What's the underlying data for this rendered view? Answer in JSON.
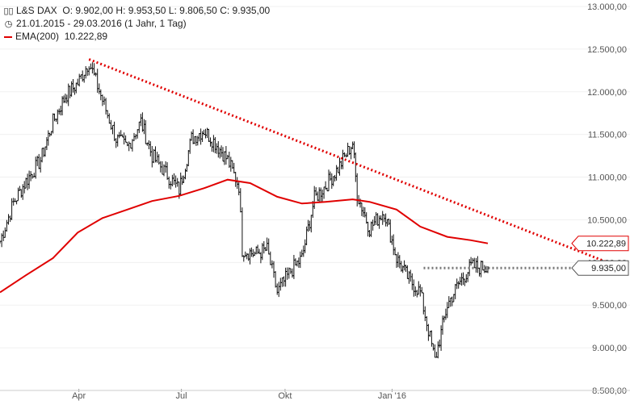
{
  "header": {
    "instrument_label": "L&S DAX",
    "ohlc": "O: 9.902,00  H: 9.953,50  L: 9.806,50  C: 9.935,00",
    "date_range": "21.01.2015 - 29.03.2016 (1 Jahr, 1 Tag)",
    "ema_label": "EMA(200)",
    "ema_value": "10.222,89",
    "icons": [
      "candlestick-icon",
      "clock-icon",
      "ema-line-icon"
    ]
  },
  "colors": {
    "price": "#111111",
    "ema": "#e00000",
    "trendline": "#e00000",
    "last_price_line": "#777777",
    "grid": "#f0f0f0",
    "axis_text": "#555555"
  },
  "chart_data": {
    "type": "line",
    "title": "L&S DAX",
    "x_tick_labels": [
      "Apr",
      "Jul",
      "Okt",
      "Jan '16"
    ],
    "y_tick_labels": [
      "8.500,00",
      "9.000,00",
      "9.500,00",
      "10.000,00",
      "10.500,00",
      "11.000,00",
      "11.500,00",
      "12.000,00",
      "12.500,00",
      "13.000,00"
    ],
    "ylim": [
      8500,
      13000
    ],
    "xlim": [
      "2015-01-21",
      "2016-03-29"
    ],
    "grid": true,
    "series": [
      {
        "name": "L&S DAX",
        "style": "ohlc-bars",
        "x": [
          "2015-01-21",
          "2015-02-02",
          "2015-02-13",
          "2015-02-26",
          "2015-03-09",
          "2015-03-20",
          "2015-03-31",
          "2015-04-10",
          "2015-04-22",
          "2015-05-04",
          "2015-05-14",
          "2015-05-26",
          "2015-06-05",
          "2015-06-17",
          "2015-06-29",
          "2015-07-10",
          "2015-07-21",
          "2015-07-31",
          "2015-08-11",
          "2015-08-21",
          "2015-08-24",
          "2015-09-04",
          "2015-09-15",
          "2015-09-24",
          "2015-10-06",
          "2015-10-16",
          "2015-10-27",
          "2015-11-06",
          "2015-11-17",
          "2015-11-30",
          "2015-12-04",
          "2015-12-15",
          "2015-12-28",
          "2016-01-08",
          "2016-01-19",
          "2016-01-29",
          "2016-02-11",
          "2016-02-22",
          "2016-03-03",
          "2016-03-14",
          "2016-03-29"
        ],
        "y": [
          10250,
          10700,
          10950,
          11200,
          11650,
          11950,
          12100,
          12350,
          11900,
          11450,
          11350,
          11650,
          11250,
          11050,
          10850,
          11450,
          11550,
          11400,
          11200,
          10900,
          10150,
          10100,
          10150,
          9650,
          9900,
          10050,
          10750,
          10900,
          11100,
          11400,
          10800,
          10400,
          10600,
          10050,
          9800,
          9650,
          8850,
          9500,
          9750,
          9950,
          9935
        ]
      },
      {
        "name": "EMA(200)",
        "style": "line",
        "x": [
          "2015-01-21",
          "2015-02-13",
          "2015-03-09",
          "2015-03-31",
          "2015-04-22",
          "2015-05-14",
          "2015-06-05",
          "2015-06-29",
          "2015-07-21",
          "2015-08-11",
          "2015-08-31",
          "2015-09-24",
          "2015-10-16",
          "2015-11-06",
          "2015-11-30",
          "2015-12-15",
          "2016-01-08",
          "2016-01-29",
          "2016-02-22",
          "2016-03-14",
          "2016-03-29"
        ],
        "y": [
          9650,
          9850,
          10050,
          10350,
          10520,
          10620,
          10720,
          10780,
          10870,
          10970,
          10930,
          10770,
          10690,
          10710,
          10740,
          10710,
          10620,
          10420,
          10300,
          10260,
          10223
        ]
      }
    ],
    "annotations": [
      {
        "type": "trendline",
        "from": {
          "x": "2015-04-10",
          "y": 12380
        },
        "to": {
          "x": "2016-03-29",
          "y": 10550
        }
      },
      {
        "type": "price_label",
        "label": "10.222,89",
        "y": 10223
      },
      {
        "type": "price_label",
        "label": "9.935,00",
        "y": 9935
      }
    ],
    "last_price_line_start": "2016-02-01"
  }
}
